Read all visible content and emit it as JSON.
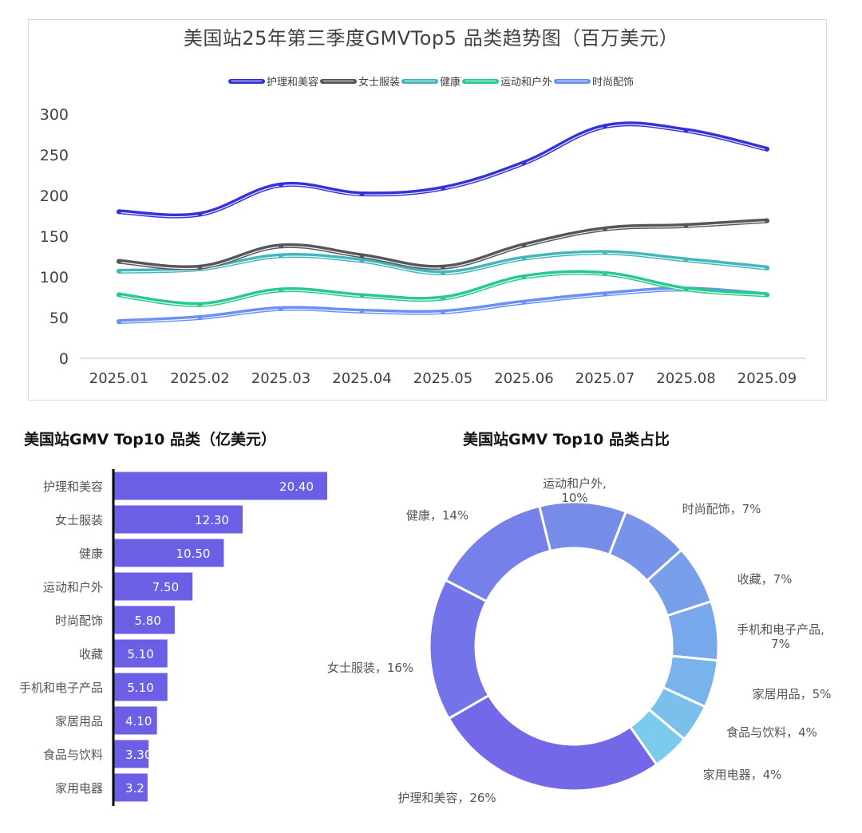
{
  "chart_data": [
    {
      "type": "line",
      "title": "美国站25年第三季度GMVTop5 品类趋势图（百万美元）",
      "xlabel": "",
      "ylabel": "",
      "x": [
        "2025.01",
        "2025.02",
        "2025.03",
        "2025.04",
        "2025.05",
        "2025.06",
        "2025.07",
        "2025.08",
        "2025.09"
      ],
      "ylim": [
        0,
        300
      ],
      "yticks": [
        "0",
        "50",
        "100",
        "150",
        "200",
        "250",
        "300"
      ],
      "grid": false,
      "legend_position": "top-center",
      "smooth": true,
      "series": [
        {
          "name": "护理和美容",
          "color": "#3232d6",
          "values": [
            180,
            177,
            213,
            202,
            209,
            240,
            285,
            280,
            257
          ]
        },
        {
          "name": "女士服装",
          "color": "#55565b",
          "values": [
            119,
            112,
            138,
            126,
            112,
            139,
            159,
            163,
            169
          ]
        },
        {
          "name": "健康",
          "color": "#44b5bb",
          "values": [
            107,
            110,
            126,
            120,
            105,
            123,
            130,
            121,
            111
          ]
        },
        {
          "name": "运动和户外",
          "color": "#28c98a",
          "values": [
            78,
            66,
            84,
            77,
            74,
            100,
            104,
            85,
            78
          ]
        },
        {
          "name": "时尚配饰",
          "color": "#6b8ff2",
          "values": [
            45,
            50,
            61,
            58,
            57,
            69,
            79,
            85,
            78
          ]
        }
      ]
    },
    {
      "type": "bar",
      "orientation": "horizontal",
      "title": "美国站GMV Top10 品类（亿美元）",
      "color": "#6b5fe6",
      "categories": [
        "护理和美容",
        "女士服装",
        "健康",
        "运动和户外",
        "时尚配饰",
        "收藏",
        "手机和电子产品",
        "家居用品",
        "食品与饮料",
        "家用电器"
      ],
      "values": [
        20.4,
        12.3,
        10.5,
        7.5,
        5.8,
        5.1,
        5.1,
        4.1,
        3.3,
        3.2
      ],
      "data_labels": [
        "20.40",
        "12.30",
        "10.50",
        "7.50",
        "5.80",
        "5.10",
        "5.10",
        "4.10",
        "3.30",
        "3.2"
      ]
    },
    {
      "type": "pie",
      "donut": true,
      "title": "美国站GMV Top10 品类占比",
      "slices": [
        {
          "name": "护理和美容",
          "value": 20.4,
          "label": "26%",
          "color": "#7467e8"
        },
        {
          "name": "女士服装",
          "value": 12.3,
          "label": "16%",
          "color": "#7474ea"
        },
        {
          "name": "健康",
          "value": 10.5,
          "label": "14%",
          "color": "#7680e9"
        },
        {
          "name": "运动和户外",
          "value": 7.5,
          "label": "10%",
          "color": "#778be9"
        },
        {
          "name": "时尚配饰",
          "value": 5.8,
          "label": "7%",
          "color": "#7894ea"
        },
        {
          "name": "收藏",
          "value": 5.1,
          "label": "7%",
          "color": "#799fea"
        },
        {
          "name": "手机和电子产品",
          "value": 5.1,
          "label": "7%",
          "color": "#78a8ec"
        },
        {
          "name": "家居用品",
          "value": 4.1,
          "label": "5%",
          "color": "#78b3ec"
        },
        {
          "name": "食品与饮料",
          "value": 3.3,
          "label": "4%",
          "color": "#7bbfec"
        },
        {
          "name": "家用电器",
          "value": 3.2,
          "label": "4%",
          "color": "#7ccaec"
        }
      ]
    }
  ]
}
